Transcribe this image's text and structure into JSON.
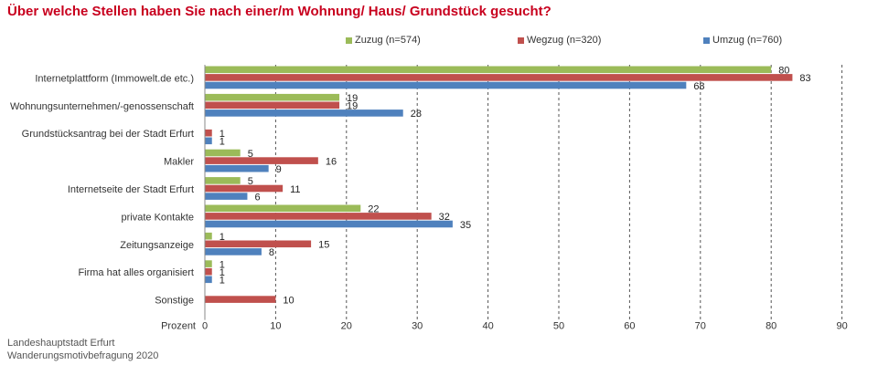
{
  "title": "Über welche  Stellen haben Sie nach einer/m Wohnung/ Haus/ Grundstück gesucht?",
  "footer": {
    "line1": "Landeshauptstadt  Erfurt",
    "line2": "Wanderungsmotivbefragung 2020"
  },
  "chart_data": {
    "type": "bar",
    "orientation": "horizontal",
    "title": "Über welche  Stellen haben Sie nach einer/m Wohnung/ Haus/ Grundstück gesucht?",
    "xlabel": "Prozent",
    "xlim": [
      0,
      90
    ],
    "xticks": [
      "0",
      "10",
      "20",
      "30",
      "40",
      "50",
      "60",
      "70",
      "80",
      "90"
    ],
    "grid": "vertical dashed",
    "legend_position": "top",
    "categories": [
      "Internetplattform (Immowelt.de etc.)",
      "Wohnungsunternehmen/-genossenschaft",
      "Grundstücksantrag bei der Stadt Erfurt",
      "Makler",
      "Internetseite der Stadt Erfurt",
      "private Kontakte",
      "Zeitungsanzeige",
      "Firma hat alles organisiert",
      "Sonstige"
    ],
    "series": [
      {
        "name": "Zuzug (n=574)",
        "color": "#9bbb59",
        "values": [
          80,
          19,
          null,
          5,
          5,
          22,
          1,
          1,
          null
        ],
        "labels": [
          "80",
          "19",
          "",
          "5",
          "5",
          "22",
          "1",
          "1",
          ""
        ]
      },
      {
        "name": "Wegzug (n=320)",
        "color": "#c0504d",
        "values": [
          83,
          19,
          1,
          16,
          11,
          32,
          15,
          1,
          10
        ],
        "labels": [
          "83",
          "19",
          "1",
          "16",
          "11",
          "32",
          "15",
          "1",
          "10"
        ]
      },
      {
        "name": "Umzug (n=760)",
        "color": "#4f81bd",
        "values": [
          68,
          28,
          1,
          9,
          6,
          35,
          8,
          1,
          null
        ],
        "labels": [
          "68",
          "28",
          "1",
          "9",
          "6",
          "35",
          "8",
          "1",
          ""
        ]
      }
    ]
  }
}
